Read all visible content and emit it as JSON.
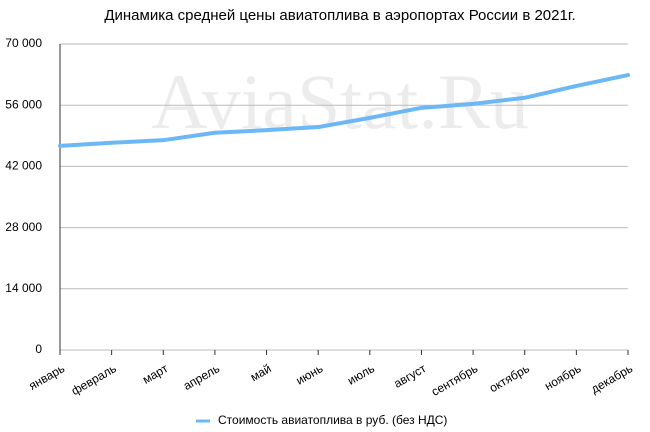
{
  "chart_data": {
    "type": "line",
    "title": "Динамика средней цены авиатоплива в аэропортах России в 2021г.",
    "watermark": "AviaStat.Ru",
    "categories": [
      "январь",
      "февраль",
      "март",
      "апрель",
      "май",
      "июнь",
      "июль",
      "август",
      "сентябрь",
      "октябрь",
      "ноябрь",
      "декабрь"
    ],
    "series": [
      {
        "name": "Стоимость авиатоплива в руб. (без НДС)",
        "color": "#6cb8f6",
        "values": [
          46700,
          47400,
          48000,
          49700,
          50300,
          51000,
          53100,
          55400,
          56300,
          57700,
          60400,
          62900
        ]
      }
    ],
    "ylim": [
      0,
      70000
    ],
    "yticks": [
      0,
      {
        "value": 14000,
        "label": "14 000"
      },
      {
        "value": 28000,
        "label": "28 000"
      },
      {
        "value": 42000,
        "label": "42 000"
      },
      {
        "value": 56000,
        "label": "56 000"
      },
      {
        "value": 70000,
        "label": "70 000"
      }
    ],
    "grid": true,
    "legend": "bottom"
  }
}
